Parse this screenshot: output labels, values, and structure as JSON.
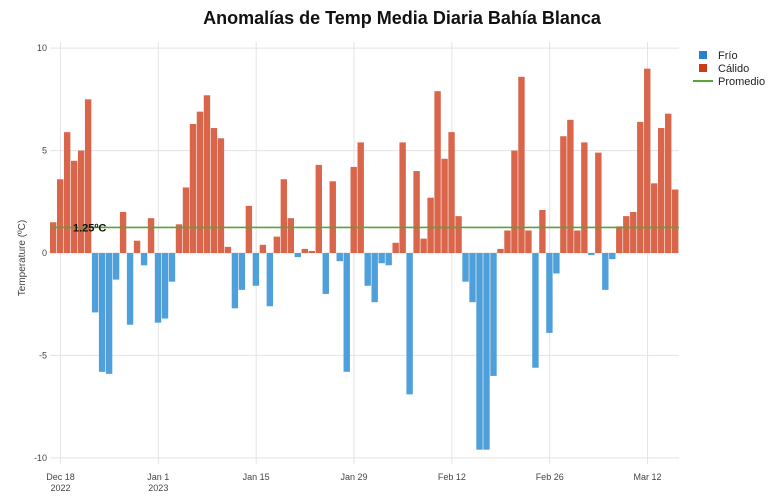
{
  "chart_data": {
    "type": "bar",
    "title": "Anomalías de Temp Media Diaria Bahía Blanca",
    "xlabel": "",
    "ylabel": "Temperature (ºC)",
    "ylim": [
      -10.3,
      10.3
    ],
    "yticks": [
      10,
      5,
      0,
      -5,
      -10
    ],
    "xtick_labels": [
      {
        "day": 0,
        "lines": [
          "Dec 18",
          "2022"
        ]
      },
      {
        "day": 14,
        "lines": [
          "Jan 1",
          "2023"
        ]
      },
      {
        "day": 28,
        "lines": [
          "Jan 15"
        ]
      },
      {
        "day": 42,
        "lines": [
          "Jan 29"
        ]
      },
      {
        "day": 56,
        "lines": [
          "Feb 12"
        ]
      },
      {
        "day": 70,
        "lines": [
          "Feb 26"
        ]
      },
      {
        "day": 84,
        "lines": [
          "Mar 12"
        ]
      }
    ],
    "start_date": "Dec 17 2022",
    "values": [
      1.5,
      3.6,
      5.9,
      4.5,
      5.0,
      7.5,
      -2.9,
      -5.8,
      -5.9,
      -1.3,
      2.0,
      -3.5,
      0.6,
      -0.6,
      1.7,
      -3.4,
      -3.2,
      -1.4,
      1.4,
      3.2,
      6.3,
      6.9,
      7.7,
      6.1,
      5.6,
      0.3,
      -2.7,
      -1.8,
      2.3,
      -1.6,
      0.4,
      -2.6,
      0.8,
      3.6,
      1.7,
      -0.2,
      0.2,
      0.1,
      4.3,
      -2.0,
      3.5,
      -0.4,
      -5.8,
      4.2,
      5.4,
      -1.6,
      -2.4,
      -0.5,
      -0.6,
      0.5,
      5.4,
      -6.9,
      4.0,
      0.7,
      2.7,
      7.9,
      4.6,
      5.9,
      1.8,
      -1.4,
      -2.4,
      -9.6,
      -9.6,
      -6.0,
      0.2,
      1.1,
      5.0,
      8.6,
      1.1,
      -5.6,
      2.1,
      -3.9,
      -1.0,
      5.7,
      6.5,
      1.1,
      5.4,
      -0.1,
      4.9,
      -1.8,
      -0.3,
      1.3,
      1.8,
      2.0,
      6.4,
      9.0,
      3.4,
      6.1,
      6.8,
      3.1
    ],
    "average": 1.25,
    "average_label": "1.25ºC",
    "legend": [
      {
        "name": "Frío",
        "color": "#2b7fd0",
        "kind": "square"
      },
      {
        "name": "Cálido",
        "color": "#cc3a1c",
        "kind": "square"
      },
      {
        "name": "Promedio",
        "color": "#5aa23a",
        "kind": "line"
      }
    ],
    "colors": {
      "cold": "#4f9fdb",
      "warm": "#d9654b",
      "average": "#5aa23a",
      "grid": "#e3e3e3"
    },
    "grid": true,
    "legend_position": "top-right"
  }
}
